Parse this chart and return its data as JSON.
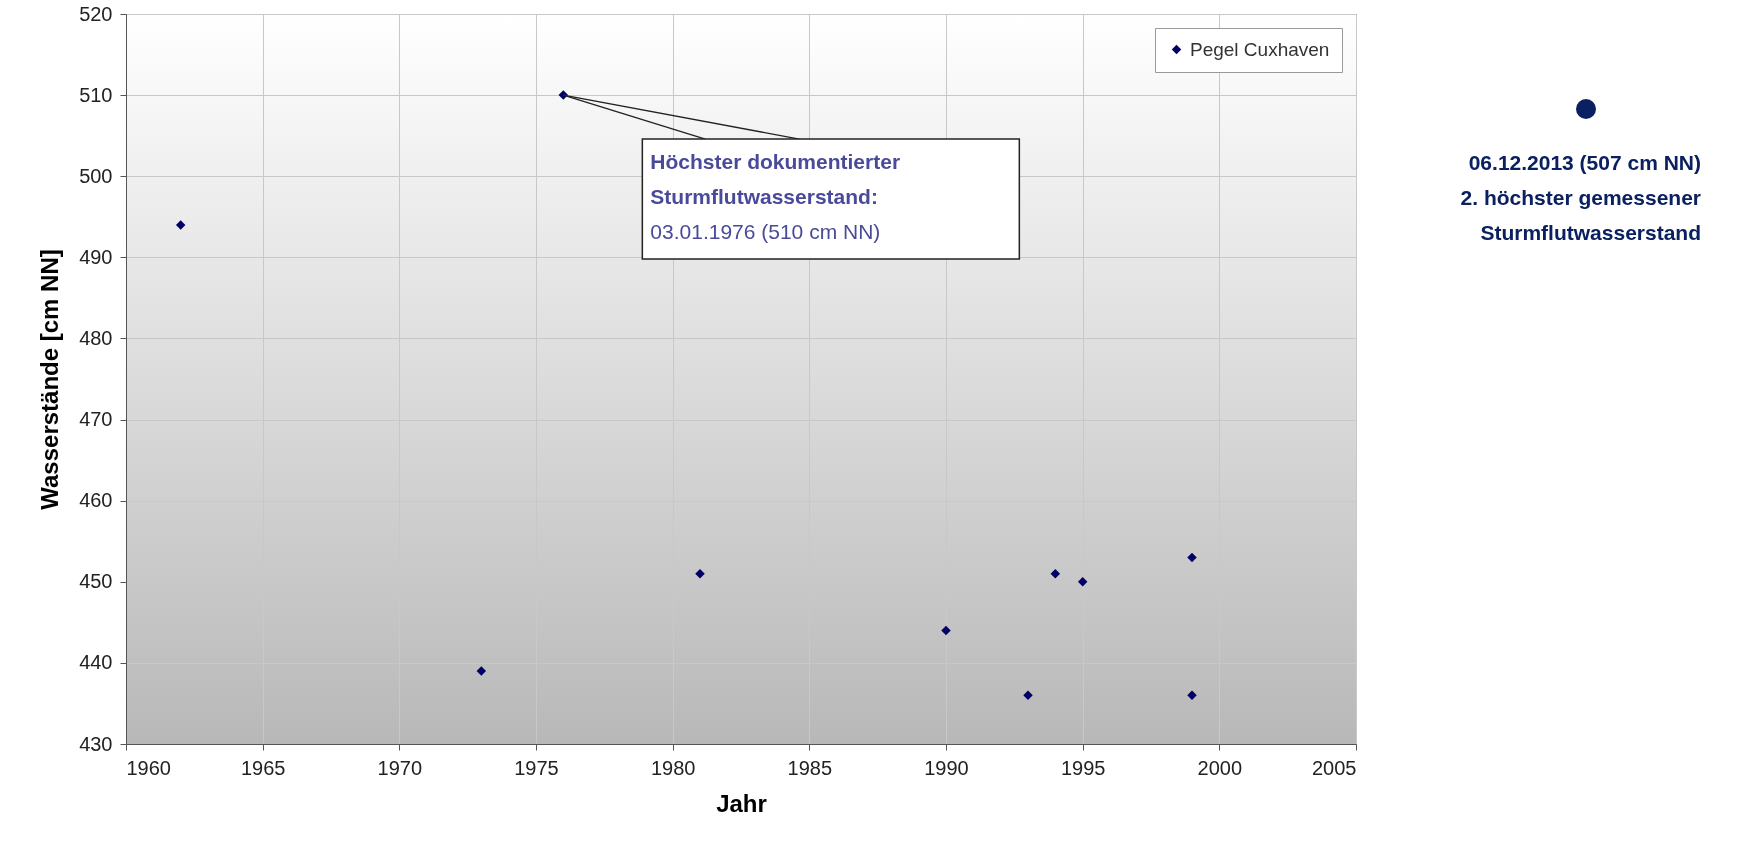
{
  "chart_data": {
    "type": "scatter",
    "xlabel": "Jahr",
    "ylabel": "Wasserstände [cm NN]",
    "x": [
      1962,
      1973,
      1976,
      1981,
      1990,
      1993,
      1994,
      1995,
      1999,
      1999
    ],
    "series": [
      {
        "name": "Pegel Cuxhaven",
        "color": "#000066",
        "values": [
          494,
          439,
          510,
          451,
          444,
          436,
          451,
          450,
          453,
          436
        ]
      }
    ],
    "xlim": [
      1960,
      2005
    ],
    "xticks": [
      1960,
      1965,
      1970,
      1975,
      1980,
      1985,
      1990,
      1995,
      2000,
      2005
    ],
    "ylim": [
      430,
      520
    ],
    "yticks": [
      430,
      440,
      450,
      460,
      470,
      480,
      490,
      500,
      510,
      520
    ],
    "grid": true,
    "legend": "top right",
    "marker": "diamond",
    "annotations": [
      {
        "text": "Höchster dokumentierter\nSturmflutwasserstand:\n03.01.1976 (510 cm NN)",
        "x": 1976,
        "y": 510
      },
      "06.12.2013 (507 cm NN)\n2. höchster gemessener\nSturmflutwasserstand"
    ]
  }
}
